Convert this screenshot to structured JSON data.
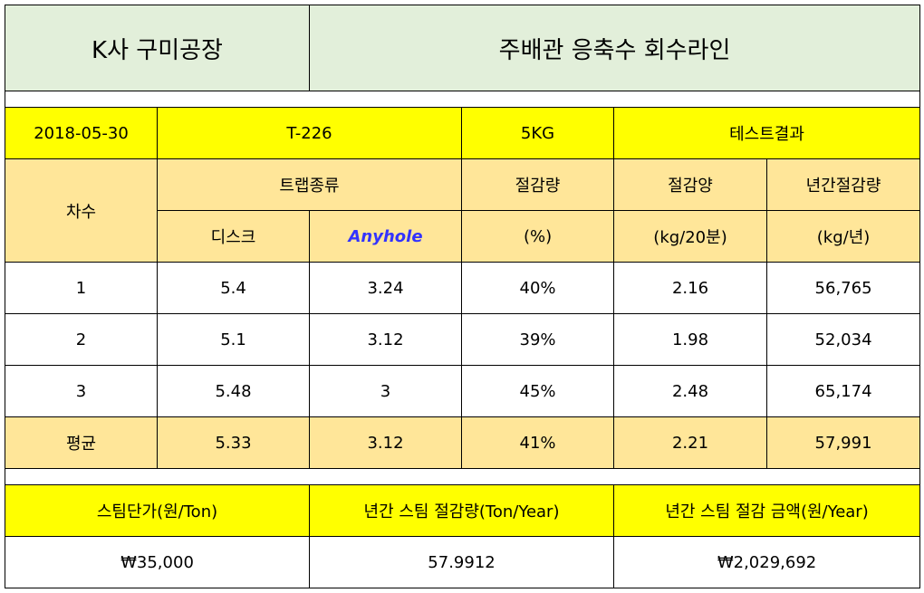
{
  "header": {
    "company": "K사 구미공장",
    "line": "주배관 응축수 회수라인"
  },
  "info": {
    "date": "2018-05-30",
    "model": "T-226",
    "weight": "5KG",
    "result": "테스트결과"
  },
  "columns": {
    "round": "차수",
    "trap_type": "트랩종류",
    "disc": "디스크",
    "anyhole": "Anyhole",
    "saving_rate": "절감량",
    "saving_rate_unit": "(%)",
    "saving_amount": "절감양",
    "saving_amount_unit": "(kg/20분)",
    "annual_saving": "년간절감량",
    "annual_saving_unit": "(kg/년)"
  },
  "rows": [
    {
      "round": "1",
      "disc": "5.4",
      "anyhole": "3.24",
      "rate": "40%",
      "amount": "2.16",
      "annual": "56,765"
    },
    {
      "round": "2",
      "disc": "5.1",
      "anyhole": "3.12",
      "rate": "39%",
      "amount": "1.98",
      "annual": "52,034"
    },
    {
      "round": "3",
      "disc": "5.48",
      "anyhole": "3",
      "rate": "45%",
      "amount": "2.48",
      "annual": "65,174"
    }
  ],
  "average": {
    "label": "평균",
    "disc": "5.33",
    "anyhole": "3.12",
    "rate": "41%",
    "amount": "2.21",
    "annual": "57,991"
  },
  "summary": {
    "steam_price_label": "스팀단가(원/Ton)",
    "annual_steam_saving_label": "년간 스팀 절감량(Ton/Year)",
    "annual_saving_cost_label": "년간 스팀 절감 금액(원/Year)",
    "steam_price": "₩35,000",
    "annual_steam_saving": "57.9912",
    "annual_saving_cost": "₩2,029,692"
  }
}
